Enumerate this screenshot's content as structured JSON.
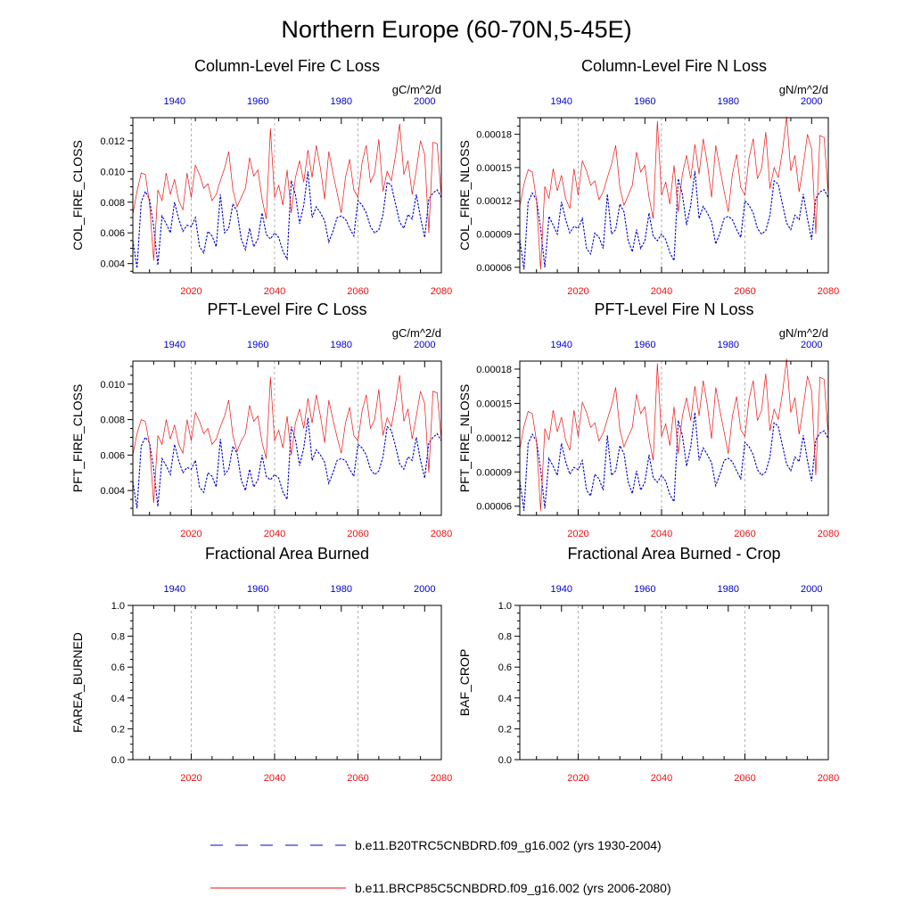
{
  "title": "Northern Europe (60-70N,5-45E)",
  "colors": {
    "red": "#ee1111",
    "blue": "#0000cc",
    "axis": "#000000",
    "grid": "#aaaaaa"
  },
  "bottom_axis": {
    "ticks": [
      2020,
      2040,
      2060,
      2080
    ],
    "range": [
      2006,
      2080
    ]
  },
  "top_axis": {
    "ticks": [
      1940,
      1960,
      1980,
      2000
    ],
    "range": [
      1930,
      2004
    ]
  },
  "legend": [
    {
      "label": "b.e11.B20TRC5CNBDRD.f09_g16.002 (yrs 1930-2004)",
      "style": "dash",
      "color": "#0000cc"
    },
    {
      "label": "b.e11.BRCP85C5CNBDRD.f09_g16.002 (yrs 2006-2080)",
      "style": "solid",
      "color": "#ee1111"
    }
  ],
  "chart_data": [
    {
      "type": "line",
      "title": "Column-Level Fire C Loss",
      "units": "gC/m^2/d",
      "ylabel": "COL_FIRE_CLOSS",
      "ylim": [
        0.0034,
        0.0135
      ],
      "yticks": [
        "0.004",
        "0.006",
        "0.008",
        "0.010",
        "0.012"
      ],
      "yticks_num": [
        0.004,
        0.006,
        0.008,
        0.01,
        0.012
      ],
      "series": [
        {
          "name": "b.e11.BRCP85C5CNBDRD.f09_g16.002 (yrs 2006-2080)",
          "values": [
            0.0072,
            0.0087,
            0.0099,
            0.0098,
            0.0079,
            0.0042,
            0.0088,
            0.0081,
            0.0099,
            0.0085,
            0.0095,
            0.0081,
            0.0075,
            0.0099,
            0.0083,
            0.0104,
            0.0098,
            0.0089,
            0.0092,
            0.0081,
            0.0085,
            0.0094,
            0.0102,
            0.0113,
            0.0088,
            0.0077,
            0.0083,
            0.0089,
            0.0109,
            0.0097,
            0.0101,
            0.0082,
            0.0069,
            0.0128,
            0.0083,
            0.0091,
            0.0078,
            0.0101,
            0.0073,
            0.0096,
            0.0107,
            0.0093,
            0.0114,
            0.0096,
            0.0117,
            0.0102,
            0.0082,
            0.0113,
            0.0099,
            0.0086,
            0.0073,
            0.0096,
            0.0108,
            0.0088,
            0.0083,
            0.0106,
            0.0117,
            0.0093,
            0.0099,
            0.0121,
            0.0087,
            0.01,
            0.0094,
            0.011,
            0.0131,
            0.0098,
            0.0107,
            0.0085,
            0.0101,
            0.012,
            0.0111,
            0.006,
            0.0119,
            0.0118,
            0.0083
          ]
        },
        {
          "name": "b.e11.B20TRC5CNBDRD.f09_g16.002 (yrs 1930-2004)",
          "values": [
            0.0055,
            0.0037,
            0.008,
            0.0087,
            0.0082,
            0.0064,
            0.0039,
            0.0071,
            0.0066,
            0.006,
            0.008,
            0.0069,
            0.0061,
            0.0065,
            0.0064,
            0.007,
            0.0051,
            0.0047,
            0.0061,
            0.0058,
            0.0051,
            0.0085,
            0.006,
            0.0063,
            0.0079,
            0.0074,
            0.0056,
            0.0049,
            0.0063,
            0.0051,
            0.0056,
            0.0073,
            0.0059,
            0.0056,
            0.006,
            0.0057,
            0.0048,
            0.0043,
            0.0094,
            0.0085,
            0.0066,
            0.0078,
            0.01,
            0.007,
            0.0077,
            0.0073,
            0.0068,
            0.0054,
            0.0061,
            0.007,
            0.0071,
            0.0069,
            0.0063,
            0.0058,
            0.0081,
            0.0078,
            0.0073,
            0.0064,
            0.006,
            0.0062,
            0.0072,
            0.0093,
            0.0091,
            0.0079,
            0.0067,
            0.0063,
            0.0072,
            0.0069,
            0.0085,
            0.007,
            0.0057,
            0.0082,
            0.0086,
            0.0088,
            0.0083
          ]
        }
      ]
    },
    {
      "type": "line",
      "title": "Column-Level Fire N Loss",
      "units": "gN/m^2/d",
      "ylabel": "COL_FIRE_NLOSS",
      "ylim": [
        5.5e-05,
        0.000195
      ],
      "yticks": [
        "0.00006",
        "0.00009",
        "0.00012",
        "0.00015",
        "0.00018"
      ],
      "yticks_num": [
        6e-05,
        9e-05,
        0.00012,
        0.00015,
        0.00018
      ],
      "series": [
        {
          "name": "b.e11.BRCP85C5CNBDRD.f09_g16.002 (yrs 2006-2080)",
          "values": [
            0.000115,
            0.000135,
            0.000148,
            0.000146,
            0.000121,
            5.8e-05,
            0.000133,
            0.000122,
            0.000149,
            0.000129,
            0.000143,
            0.000122,
            0.000113,
            0.000149,
            0.000125,
            0.000156,
            0.000147,
            0.000134,
            0.000138,
            0.000121,
            0.000128,
            0.000141,
            0.000153,
            0.00017,
            0.000132,
            0.000116,
            0.000125,
            0.000134,
            0.000164,
            0.000146,
            0.000152,
            0.000123,
            0.000104,
            0.000192,
            0.000125,
            0.000137,
            0.000117,
            0.000152,
            0.00011,
            0.000144,
            0.000161,
            0.00014,
            0.000171,
            0.000144,
            0.000176,
            0.000153,
            0.000123,
            0.00017,
            0.000149,
            0.000129,
            0.00011,
            0.000144,
            0.000162,
            0.000132,
            0.000125,
            0.000159,
            0.000176,
            0.00014,
            0.000149,
            0.000182,
            0.000131,
            0.00015,
            0.000141,
            0.000165,
            0.000196,
            0.000147,
            0.000161,
            0.000128,
            0.000152,
            0.00018,
            0.000167,
            9e-05,
            0.000179,
            0.000177,
            0.000125
          ]
        },
        {
          "name": "b.e11.B20TRC5CNBDRD.f09_g16.002 (yrs 1930-2004)",
          "values": [
            8.5e-05,
            5.8e-05,
            0.000119,
            0.000127,
            0.000121,
            9.5e-05,
            6e-05,
            0.000106,
            9.8e-05,
            9e-05,
            0.000119,
            0.000103,
            9.1e-05,
            9.7e-05,
            9.5e-05,
            0.000104,
            7.7e-05,
            7.2e-05,
            9.1e-05,
            8.7e-05,
            7.7e-05,
            0.000126,
            9e-05,
            9.4e-05,
            0.000117,
            0.00011,
            8.4e-05,
            7.4e-05,
            9.4e-05,
            7.7e-05,
            8.4e-05,
            0.000109,
            8.8e-05,
            8.4e-05,
            9e-05,
            8.5e-05,
            7.3e-05,
            6.6e-05,
            0.00014,
            0.000126,
            9.8e-05,
            0.000116,
            0.000147,
            0.000104,
            0.000115,
            0.000109,
            0.000101,
            8.1e-05,
            9.1e-05,
            0.000104,
            0.000106,
            0.000103,
            9.4e-05,
            8.7e-05,
            0.00012,
            0.000116,
            0.000109,
            9.5e-05,
            9e-05,
            9.3e-05,
            0.000107,
            0.000138,
            0.000135,
            0.000117,
            0.0001,
            9.4e-05,
            0.000107,
            0.000103,
            0.000126,
            0.000104,
            8.5e-05,
            0.000122,
            0.000128,
            0.00013,
            0.000123
          ]
        }
      ]
    },
    {
      "type": "line",
      "title": "PFT-Level Fire C Loss",
      "units": "gC/m^2/d",
      "ylabel": "PFT_FIRE_CLOSS",
      "ylim": [
        0.0026,
        0.0113
      ],
      "yticks": [
        "0.004",
        "0.006",
        "0.008",
        "0.010"
      ],
      "yticks_num": [
        0.004,
        0.006,
        0.008,
        0.01
      ],
      "series": [
        {
          "name": "b.e11.BRCP85C5CNBDRD.f09_g16.002 (yrs 2006-2080)",
          "values": [
            0.006,
            0.0072,
            0.008,
            0.0079,
            0.0066,
            0.0033,
            0.0071,
            0.0066,
            0.008,
            0.0069,
            0.0077,
            0.0066,
            0.0061,
            0.008,
            0.0068,
            0.0084,
            0.0079,
            0.0072,
            0.0075,
            0.0066,
            0.0069,
            0.0076,
            0.0082,
            0.0091,
            0.0071,
            0.0062,
            0.0068,
            0.0072,
            0.0088,
            0.0079,
            0.0082,
            0.0067,
            0.0058,
            0.0104,
            0.0068,
            0.0074,
            0.0064,
            0.0082,
            0.006,
            0.0078,
            0.0086,
            0.0075,
            0.0092,
            0.0078,
            0.0094,
            0.0082,
            0.0067,
            0.0091,
            0.008,
            0.007,
            0.0061,
            0.0078,
            0.0087,
            0.0071,
            0.0068,
            0.0085,
            0.0094,
            0.0075,
            0.008,
            0.0097,
            0.0071,
            0.0081,
            0.0076,
            0.0089,
            0.0105,
            0.0079,
            0.0086,
            0.0069,
            0.0082,
            0.0096,
            0.0089,
            0.005,
            0.0096,
            0.0095,
            0.0068
          ]
        },
        {
          "name": "b.e11.B20TRC5CNBDRD.f09_g16.002 (yrs 1930-2004)",
          "values": [
            0.0045,
            0.003,
            0.0065,
            0.007,
            0.0067,
            0.0052,
            0.0031,
            0.0058,
            0.0054,
            0.0049,
            0.0066,
            0.0057,
            0.005,
            0.0053,
            0.0052,
            0.0057,
            0.0042,
            0.0039,
            0.005,
            0.0048,
            0.0042,
            0.0069,
            0.0049,
            0.0052,
            0.0065,
            0.0061,
            0.0046,
            0.004,
            0.0052,
            0.0042,
            0.0046,
            0.006,
            0.0048,
            0.0046,
            0.0049,
            0.0047,
            0.0039,
            0.0035,
            0.0076,
            0.0069,
            0.0054,
            0.0064,
            0.0081,
            0.0057,
            0.0063,
            0.006,
            0.0056,
            0.0044,
            0.005,
            0.0057,
            0.0058,
            0.0057,
            0.0052,
            0.0048,
            0.0066,
            0.0064,
            0.006,
            0.0052,
            0.0049,
            0.0051,
            0.0059,
            0.0076,
            0.0074,
            0.0065,
            0.0055,
            0.0052,
            0.0059,
            0.0057,
            0.007,
            0.0057,
            0.0047,
            0.0067,
            0.007,
            0.0072,
            0.0068
          ]
        }
      ]
    },
    {
      "type": "line",
      "title": "PFT-Level Fire N Loss",
      "units": "gN/m^2/d",
      "ylabel": "PFT_FIRE_NLOSS",
      "ylim": [
        5.2e-05,
        0.000187
      ],
      "yticks": [
        "0.00006",
        "0.00009",
        "0.00012",
        "0.00015",
        "0.00018"
      ],
      "yticks_num": [
        6e-05,
        9e-05,
        0.00012,
        0.00015,
        0.00018
      ],
      "series": [
        {
          "name": "b.e11.BRCP85C5CNBDRD.f09_g16.002 (yrs 2006-2080)",
          "values": [
            0.00011,
            0.00013,
            0.000143,
            0.000141,
            0.000117,
            5.6e-05,
            0.000128,
            0.000118,
            0.000144,
            0.000125,
            0.000138,
            0.000118,
            0.000109,
            0.000144,
            0.000121,
            0.000151,
            0.000142,
            0.000129,
            0.000133,
            0.000117,
            0.000124,
            0.000136,
            0.000148,
            0.000164,
            0.000127,
            0.000112,
            0.000121,
            0.000129,
            0.000158,
            0.000141,
            0.000147,
            0.000119,
            0.0001,
            0.000185,
            0.000121,
            0.000132,
            0.000113,
            0.000147,
            0.000106,
            0.000139,
            0.000155,
            0.000135,
            0.000165,
            0.000139,
            0.00017,
            0.000148,
            0.000119,
            0.000164,
            0.000144,
            0.000125,
            0.000106,
            0.000139,
            0.000156,
            0.000127,
            0.000121,
            0.000154,
            0.00017,
            0.000135,
            0.000144,
            0.000176,
            0.000126,
            0.000145,
            0.000136,
            0.000159,
            0.000189,
            0.000142,
            0.000155,
            0.000123,
            0.000147,
            0.000174,
            0.000161,
            8.7e-05,
            0.000173,
            0.000171,
            0.000121
          ]
        },
        {
          "name": "b.e11.B20TRC5CNBDRD.f09_g16.002 (yrs 1930-2004)",
          "values": [
            8.2e-05,
            5.6e-05,
            0.000115,
            0.000123,
            0.000117,
            9.2e-05,
            5.8e-05,
            0.000102,
            9.5e-05,
            8.7e-05,
            0.000115,
            9.9e-05,
            8.8e-05,
            9.4e-05,
            9.2e-05,
            0.0001,
            7.4e-05,
            6.9e-05,
            8.8e-05,
            8.4e-05,
            7.4e-05,
            0.000122,
            8.7e-05,
            9.1e-05,
            0.000113,
            0.000106,
            8.1e-05,
            7.1e-05,
            9.1e-05,
            7.4e-05,
            8.1e-05,
            0.000105,
            8.5e-05,
            8.1e-05,
            8.7e-05,
            8.2e-05,
            7e-05,
            6.4e-05,
            0.000135,
            0.000122,
            9.5e-05,
            0.000112,
            0.000142,
            0.0001,
            0.000111,
            0.000105,
            9.8e-05,
            7.8e-05,
            8.8e-05,
            0.0001,
            0.000102,
            9.9e-05,
            9.1e-05,
            8.4e-05,
            0.000116,
            0.000112,
            0.000105,
            9.2e-05,
            8.7e-05,
            9e-05,
            0.000103,
            0.000133,
            0.00013,
            0.000113,
            9.7e-05,
            9.1e-05,
            0.000103,
            9.9e-05,
            0.000122,
            0.0001,
            8.2e-05,
            0.000118,
            0.000124,
            0.000126,
            0.000119
          ]
        }
      ]
    },
    {
      "type": "line",
      "title": "Fractional Area Burned",
      "units": "",
      "ylabel": "FAREA_BURNED",
      "ylim": [
        0.0,
        1.0
      ],
      "yticks": [
        "0.0",
        "0.2",
        "0.4",
        "0.6",
        "0.8",
        "1.0"
      ],
      "yticks_num": [
        0.0,
        0.2,
        0.4,
        0.6,
        0.8,
        1.0
      ],
      "series": []
    },
    {
      "type": "line",
      "title": "Fractional Area Burned - Crop",
      "units": "",
      "ylabel": "BAF_CROP",
      "ylim": [
        0.0,
        1.0
      ],
      "yticks": [
        "0.0",
        "0.2",
        "0.4",
        "0.6",
        "0.8",
        "1.0"
      ],
      "yticks_num": [
        0.0,
        0.2,
        0.4,
        0.6,
        0.8,
        1.0
      ],
      "series": []
    }
  ]
}
